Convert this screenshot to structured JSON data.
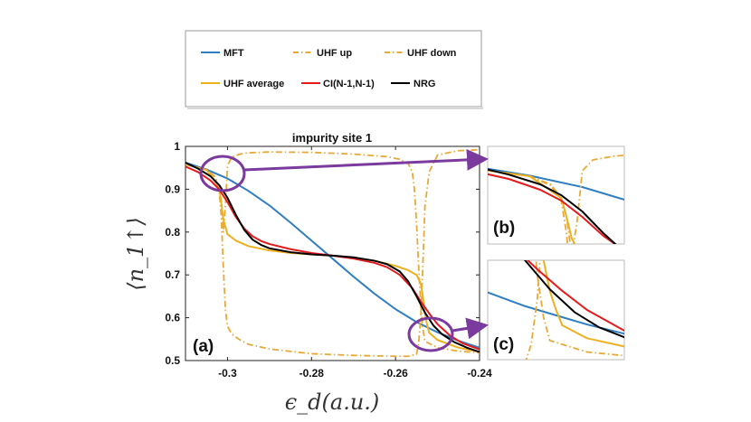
{
  "chart_data": {
    "type": "line",
    "title": "impurity site 1",
    "xlabel": "ϵ_d(a.u.)",
    "ylabel": "⟨n_1↑⟩",
    "xlim": [
      -0.31,
      -0.24
    ],
    "ylim": [
      0.5,
      1.0
    ],
    "xticks": [
      "-0.3",
      "-0.28",
      "-0.26",
      "-0.24"
    ],
    "yticks": [
      "0.5",
      "0.6",
      "0.7",
      "0.8",
      "0.9",
      "1"
    ],
    "legend": [
      "MFT",
      "UHF up",
      "UHF down",
      "UHF average",
      "CI(N-1,N-1)",
      "NRG"
    ],
    "panel_labels": [
      "(a)",
      "(b)",
      "(c)"
    ],
    "colors": {
      "MFT": "#2f7ec1",
      "UHF up": "#e8a93a",
      "UHF down": "#e8a93a",
      "UHF average": "#edb120",
      "CI(N-1,N-1)": "#e41a1c",
      "NRG": "#000000",
      "annotation": "#7b3a9e"
    },
    "series": [
      {
        "name": "MFT",
        "style": "solid",
        "x": [
          -0.31,
          -0.305,
          -0.3,
          -0.295,
          -0.29,
          -0.285,
          -0.28,
          -0.275,
          -0.27,
          -0.265,
          -0.26,
          -0.255,
          -0.25,
          -0.245,
          -0.24
        ],
        "y": [
          0.962,
          0.946,
          0.925,
          0.896,
          0.862,
          0.822,
          0.78,
          0.738,
          0.696,
          0.656,
          0.62,
          0.59,
          0.566,
          0.546,
          0.53
        ]
      },
      {
        "name": "UHF up",
        "style": "dashdot",
        "x": [
          -0.31,
          -0.305,
          -0.303,
          -0.302,
          -0.3015,
          -0.301,
          -0.3005,
          -0.3,
          -0.299,
          -0.297,
          -0.295,
          -0.29,
          -0.28,
          -0.27,
          -0.26,
          -0.257,
          -0.255,
          -0.2545,
          -0.254,
          -0.2535,
          -0.253,
          -0.252,
          -0.25,
          -0.245,
          -0.24
        ],
        "y": [
          0.958,
          0.945,
          0.928,
          0.9,
          0.84,
          0.72,
          0.62,
          0.58,
          0.562,
          0.548,
          0.538,
          0.527,
          0.516,
          0.512,
          0.51,
          0.51,
          0.515,
          0.54,
          0.6,
          0.72,
          0.86,
          0.94,
          0.98,
          0.99,
          0.992
        ]
      },
      {
        "name": "UHF down",
        "style": "dashdot",
        "x": [
          -0.31,
          -0.305,
          -0.303,
          -0.302,
          -0.3015,
          -0.301,
          -0.3005,
          -0.3,
          -0.299,
          -0.297,
          -0.295,
          -0.29,
          -0.28,
          -0.27,
          -0.262,
          -0.259,
          -0.257,
          -0.256,
          -0.2555,
          -0.255,
          -0.2545,
          -0.254,
          -0.2535,
          -0.253,
          -0.25,
          -0.245,
          -0.24
        ],
        "y": [
          0.958,
          0.945,
          0.93,
          0.905,
          0.87,
          0.8,
          0.86,
          0.955,
          0.975,
          0.982,
          0.985,
          0.987,
          0.986,
          0.982,
          0.976,
          0.97,
          0.96,
          0.94,
          0.9,
          0.82,
          0.72,
          0.63,
          0.575,
          0.545,
          0.53,
          0.522,
          0.518
        ]
      },
      {
        "name": "UHF average",
        "style": "solid",
        "x": [
          -0.31,
          -0.305,
          -0.302,
          -0.3015,
          -0.301,
          -0.3,
          -0.298,
          -0.295,
          -0.29,
          -0.285,
          -0.28,
          -0.275,
          -0.27,
          -0.265,
          -0.26,
          -0.257,
          -0.255,
          -0.254,
          -0.2535,
          -0.253,
          -0.2525,
          -0.252,
          -0.25,
          -0.245,
          -0.24
        ],
        "y": [
          0.958,
          0.945,
          0.905,
          0.87,
          0.83,
          0.795,
          0.78,
          0.767,
          0.757,
          0.751,
          0.748,
          0.745,
          0.74,
          0.733,
          0.721,
          0.711,
          0.7,
          0.68,
          0.65,
          0.61,
          0.585,
          0.565,
          0.548,
          0.53,
          0.52
        ]
      },
      {
        "name": "CI(N-1,N-1)",
        "style": "solid",
        "x": [
          -0.31,
          -0.307,
          -0.304,
          -0.302,
          -0.3,
          -0.298,
          -0.296,
          -0.294,
          -0.292,
          -0.29,
          -0.285,
          -0.28,
          -0.275,
          -0.27,
          -0.265,
          -0.262,
          -0.259,
          -0.256,
          -0.254,
          -0.252,
          -0.25,
          -0.247,
          -0.244,
          -0.24
        ],
        "y": [
          0.953,
          0.94,
          0.92,
          0.9,
          0.87,
          0.835,
          0.808,
          0.79,
          0.779,
          0.772,
          0.76,
          0.751,
          0.745,
          0.738,
          0.728,
          0.718,
          0.7,
          0.669,
          0.638,
          0.61,
          0.585,
          0.558,
          0.54,
          0.526
        ]
      },
      {
        "name": "NRG",
        "style": "solid",
        "x": [
          -0.31,
          -0.307,
          -0.304,
          -0.302,
          -0.3,
          -0.298,
          -0.296,
          -0.294,
          -0.292,
          -0.29,
          -0.285,
          -0.28,
          -0.275,
          -0.27,
          -0.265,
          -0.262,
          -0.259,
          -0.257,
          -0.255,
          -0.253,
          -0.251,
          -0.249,
          -0.246,
          -0.243,
          -0.24
        ],
        "y": [
          0.962,
          0.948,
          0.93,
          0.91,
          0.88,
          0.84,
          0.805,
          0.782,
          0.77,
          0.762,
          0.753,
          0.748,
          0.745,
          0.741,
          0.733,
          0.725,
          0.708,
          0.685,
          0.65,
          0.612,
          0.582,
          0.562,
          0.543,
          0.53,
          0.52
        ]
      }
    ],
    "insets": [
      {
        "label": "(b)",
        "xlim": [
          -0.309,
          -0.296
        ],
        "ylim": [
          0.82,
          1.0
        ]
      },
      {
        "label": "(c)",
        "xlim": [
          -0.258,
          -0.247
        ],
        "ylim": [
          0.52,
          0.65
        ]
      }
    ]
  }
}
